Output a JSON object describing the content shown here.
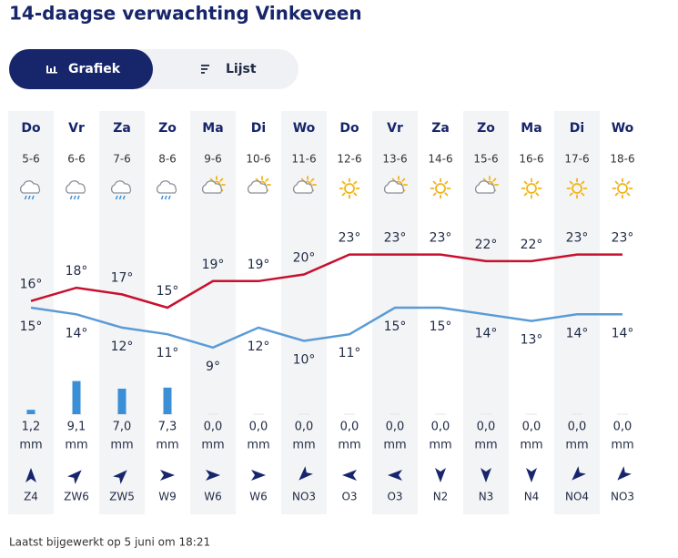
{
  "header": {
    "title": "14-daagse verwachting Vinkeveen"
  },
  "tabs": [
    {
      "label": "Grafiek"
    },
    {
      "label": "Lijst"
    }
  ],
  "rain_unit": "mm",
  "days": [
    {
      "day": "Do",
      "date": "5-6",
      "max": {
        "value": 16,
        "label": "16°"
      },
      "min": {
        "value": 15,
        "label": "15°"
      },
      "rain": {
        "value": 1.2,
        "label": "1,2"
      },
      "wind": "Z4"
    },
    {
      "day": "Vr",
      "date": "6-6",
      "max": {
        "value": 18,
        "label": "18°"
      },
      "min": {
        "value": 14,
        "label": "14°"
      },
      "rain": {
        "value": 9.1,
        "label": "9,1"
      },
      "wind": "ZW6"
    },
    {
      "day": "Za",
      "date": "7-6",
      "max": {
        "value": 17,
        "label": "17°"
      },
      "min": {
        "value": 12,
        "label": "12°"
      },
      "rain": {
        "value": 7.0,
        "label": "7,0"
      },
      "wind": "ZW5"
    },
    {
      "day": "Zo",
      "date": "8-6",
      "max": {
        "value": 15,
        "label": "15°"
      },
      "min": {
        "value": 11,
        "label": "11°"
      },
      "rain": {
        "value": 7.3,
        "label": "7,3"
      },
      "wind": "W9"
    },
    {
      "day": "Ma",
      "date": "9-6",
      "max": {
        "value": 19,
        "label": "19°"
      },
      "min": {
        "value": 9,
        "label": "9°"
      },
      "rain": {
        "value": 0,
        "label": "0,0"
      },
      "wind": "W6"
    },
    {
      "day": "Di",
      "date": "10-6",
      "max": {
        "value": 19,
        "label": "19°"
      },
      "min": {
        "value": 12,
        "label": "12°"
      },
      "rain": {
        "value": 0,
        "label": "0,0"
      },
      "wind": "W6"
    },
    {
      "day": "Wo",
      "date": "11-6",
      "max": {
        "value": 20,
        "label": "20°"
      },
      "min": {
        "value": 10,
        "label": "10°"
      },
      "rain": {
        "value": 0,
        "label": "0,0"
      },
      "wind": "NO3"
    },
    {
      "day": "Do",
      "date": "12-6",
      "max": {
        "value": 23,
        "label": "23°"
      },
      "min": {
        "value": 11,
        "label": "11°"
      },
      "rain": {
        "value": 0,
        "label": "0,0"
      },
      "wind": "O3"
    },
    {
      "day": "Vr",
      "date": "13-6",
      "max": {
        "value": 23,
        "label": "23°"
      },
      "min": {
        "value": 15,
        "label": "15°"
      },
      "rain": {
        "value": 0,
        "label": "0,0"
      },
      "wind": "O3"
    },
    {
      "day": "Za",
      "date": "14-6",
      "max": {
        "value": 23,
        "label": "23°"
      },
      "min": {
        "value": 15,
        "label": "15°"
      },
      "rain": {
        "value": 0,
        "label": "0,0"
      },
      "wind": "N2"
    },
    {
      "day": "Zo",
      "date": "15-6",
      "max": {
        "value": 22,
        "label": "22°"
      },
      "min": {
        "value": 14,
        "label": "14°"
      },
      "rain": {
        "value": 0,
        "label": "0,0"
      },
      "wind": "N3"
    },
    {
      "day": "Ma",
      "date": "16-6",
      "max": {
        "value": 22,
        "label": "22°"
      },
      "min": {
        "value": 13,
        "label": "13°"
      },
      "rain": {
        "value": 0,
        "label": "0,0"
      },
      "wind": "N4"
    },
    {
      "day": "Di",
      "date": "17-6",
      "max": {
        "value": 23,
        "label": "23°"
      },
      "min": {
        "value": 14,
        "label": "14°"
      },
      "rain": {
        "value": 0,
        "label": "0,0"
      },
      "wind": "NO4"
    },
    {
      "day": "Wo",
      "date": "18-6",
      "max": {
        "value": 23,
        "label": "23°"
      },
      "min": {
        "value": 14,
        "label": "14°"
      },
      "rain": {
        "value": 0,
        "label": "0,0"
      },
      "wind": "NO3"
    }
  ],
  "footer": "Laatst bijgewerkt op 5 juni om 18:21"
}
